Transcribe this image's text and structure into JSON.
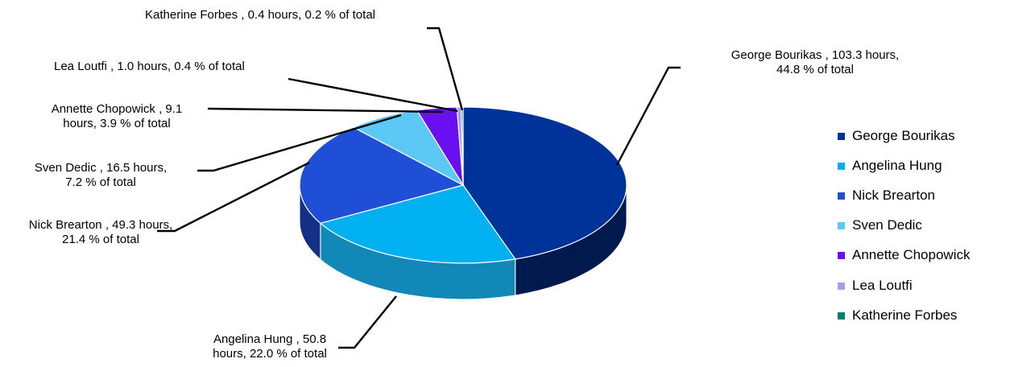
{
  "chart_data": {
    "type": "pie",
    "style": "3d-exploded-none",
    "unit_word": "hours",
    "slices": [
      {
        "name": "George Bourikas",
        "hours": 103.3,
        "percent": 44.8,
        "color": "#003399",
        "side_color": "#001a4d",
        "label_lines": [
          "George Bourikas ,  103.3 hours,",
          "44.8 % of total"
        ]
      },
      {
        "name": "Angelina Hung",
        "hours": 50.8,
        "percent": 22.0,
        "color": "#00b0f0",
        "side_color": "#1288b8",
        "label_lines": [
          "Angelina Hung ,  50.8",
          "hours,  22.0 % of total"
        ]
      },
      {
        "name": "Nick Brearton",
        "hours": 49.3,
        "percent": 21.4,
        "color": "#1f4fd6",
        "side_color": "#142f86",
        "label_lines": [
          "Nick Brearton ,  49.3 hours,",
          "21.4 % of total"
        ]
      },
      {
        "name": "Sven Dedic",
        "hours": 16.5,
        "percent": 7.2,
        "color": "#5bc8f5",
        "side_color": "#3a8fb3",
        "label_lines": [
          "Sven Dedic ,  16.5 hours,",
          "7.2 % of total"
        ]
      },
      {
        "name": "Annette Chopowick",
        "hours": 9.1,
        "percent": 3.9,
        "color": "#6a0ff0",
        "side_color": "#40089a",
        "label_lines": [
          "Annette Chopowick ,  9.1",
          "hours,  3.9 % of total"
        ]
      },
      {
        "name": "Lea Loutfi",
        "hours": 1.0,
        "percent": 0.4,
        "color": "#a99cf0",
        "side_color": "#6e64a8",
        "label_lines": [
          "Lea Loutfi  ,  1.0 hours,  0.4 % of total"
        ]
      },
      {
        "name": "Katherine Forbes",
        "hours": 0.4,
        "percent": 0.2,
        "color": "#007f6e",
        "side_color": "#004f45",
        "label_lines": [
          "Katherine Forbes  ,  0.4 hours,  0.2 % of total"
        ]
      }
    ],
    "legend": {
      "position": "right",
      "items": [
        "George Bourikas",
        "Angelina Hung",
        "Nick Brearton",
        "Sven Dedic",
        "Annette Chopowick",
        "Lea Loutfi",
        "Katherine Forbes"
      ]
    }
  }
}
